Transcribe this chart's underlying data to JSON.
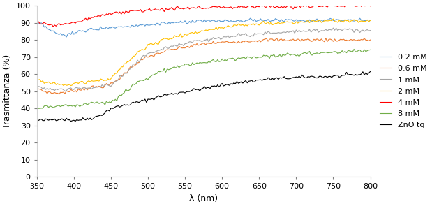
{
  "title": "",
  "xlabel": "λ (nm)",
  "ylabel": "Trasmittanza (%)",
  "xlim": [
    350,
    800
  ],
  "ylim": [
    0,
    100
  ],
  "xticks": [
    350,
    400,
    450,
    500,
    550,
    600,
    650,
    700,
    750,
    800
  ],
  "yticks": [
    0,
    10,
    20,
    30,
    40,
    50,
    60,
    70,
    80,
    90,
    100
  ],
  "legend_labels": [
    "0.2 mM",
    "0.6 mM",
    "1 mM",
    "2 mM",
    "4 mM",
    "8 mM",
    "ZnO tq"
  ],
  "line_colors": [
    "#5B9BD5",
    "#ED7D31",
    "#A5A5A5",
    "#FFC000",
    "#FF0000",
    "#70AD47",
    "#000000"
  ],
  "series": {
    "0.2mM": {
      "x": [
        350,
        360,
        370,
        380,
        390,
        400,
        410,
        420,
        430,
        440,
        450,
        460,
        470,
        480,
        490,
        500,
        520,
        540,
        560,
        580,
        600,
        620,
        640,
        660,
        680,
        700,
        720,
        740,
        760,
        780,
        800
      ],
      "y": [
        90,
        88,
        85,
        83,
        83,
        84,
        85,
        86,
        86.5,
        87,
        87.5,
        87.5,
        88,
        88.5,
        88.5,
        89,
        89.5,
        90,
        90.5,
        91,
        91,
        91,
        91.5,
        91.5,
        91.5,
        91.5,
        91.5,
        91.5,
        91.5,
        91.5,
        91.5
      ]
    },
    "0.6mM": {
      "x": [
        350,
        360,
        370,
        380,
        390,
        400,
        410,
        420,
        430,
        440,
        450,
        460,
        470,
        480,
        490,
        500,
        520,
        540,
        560,
        580,
        600,
        620,
        640,
        660,
        680,
        700,
        720,
        740,
        760,
        780,
        800
      ],
      "y": [
        52,
        50,
        49,
        49,
        49.5,
        50.5,
        51,
        52,
        52.5,
        53,
        54,
        57,
        61,
        65,
        68,
        70,
        73,
        75,
        76.5,
        78,
        78.5,
        79,
        79.5,
        80,
        80,
        80,
        80,
        80,
        80,
        80,
        80
      ]
    },
    "1mM": {
      "x": [
        350,
        360,
        370,
        380,
        390,
        400,
        410,
        420,
        430,
        440,
        450,
        460,
        470,
        480,
        490,
        500,
        520,
        540,
        560,
        580,
        600,
        620,
        640,
        660,
        680,
        700,
        720,
        740,
        760,
        780,
        800
      ],
      "y": [
        53,
        52,
        51,
        51,
        51,
        51.5,
        52,
        52,
        52.5,
        53,
        54,
        57,
        61,
        65,
        69,
        72,
        75,
        77,
        79,
        80.5,
        81.5,
        82.5,
        83,
        84,
        84.5,
        85,
        85.5,
        86,
        86,
        86,
        86
      ]
    },
    "2mM": {
      "x": [
        350,
        360,
        370,
        380,
        390,
        400,
        410,
        420,
        430,
        440,
        450,
        460,
        470,
        480,
        490,
        500,
        520,
        540,
        560,
        580,
        600,
        620,
        640,
        660,
        680,
        700,
        720,
        740,
        760,
        780,
        800
      ],
      "y": [
        57,
        55.5,
        54.5,
        54,
        54,
        54.5,
        55,
        55.5,
        56,
        56.5,
        57.5,
        62,
        66,
        70,
        74,
        76,
        80,
        82,
        84,
        86,
        87.5,
        88.5,
        89,
        89.5,
        90,
        90.5,
        91,
        91,
        91,
        91,
        91
      ]
    },
    "4mM": {
      "x": [
        350,
        360,
        370,
        380,
        390,
        400,
        410,
        420,
        430,
        440,
        450,
        460,
        470,
        480,
        490,
        500,
        520,
        540,
        560,
        580,
        600,
        620,
        640,
        660,
        680,
        700,
        720,
        740,
        760,
        780,
        800
      ],
      "y": [
        90,
        89.5,
        89,
        89,
        89.5,
        90,
        91,
        92.5,
        93.5,
        94.5,
        95,
        96,
        96.5,
        97,
        97,
        97.5,
        98,
        98.5,
        98.5,
        99,
        99,
        99,
        99.5,
        99.5,
        99.5,
        99.5,
        100,
        100,
        100,
        100,
        100
      ]
    },
    "8mM": {
      "x": [
        350,
        360,
        370,
        380,
        390,
        400,
        410,
        420,
        430,
        440,
        450,
        460,
        470,
        480,
        490,
        500,
        520,
        540,
        560,
        580,
        600,
        620,
        640,
        660,
        680,
        700,
        720,
        740,
        760,
        780,
        800
      ],
      "y": [
        40,
        41,
        41,
        41.5,
        41.5,
        41.5,
        42,
        43,
        43,
        43.5,
        44,
        46,
        50,
        53,
        56,
        58,
        62,
        64,
        66,
        67,
        68,
        69,
        70,
        70.5,
        71,
        71.5,
        72,
        72.5,
        73,
        73.5,
        74
      ]
    },
    "ZnO": {
      "x": [
        350,
        360,
        370,
        380,
        390,
        400,
        410,
        420,
        430,
        440,
        450,
        460,
        470,
        480,
        490,
        500,
        520,
        540,
        560,
        580,
        600,
        620,
        640,
        660,
        680,
        700,
        720,
        740,
        760,
        780,
        800
      ],
      "y": [
        33,
        33,
        33.5,
        34,
        33.5,
        33,
        33.5,
        34,
        35,
        37,
        40,
        41,
        42,
        43,
        44,
        45,
        47.5,
        49,
        50.5,
        52,
        53.5,
        55,
        56,
        57,
        57.5,
        58,
        58.5,
        58.5,
        59,
        59.5,
        61
      ]
    }
  },
  "noise_seeds": [
    0,
    7,
    14,
    21,
    28,
    35,
    42
  ],
  "noise_std": 0.5
}
